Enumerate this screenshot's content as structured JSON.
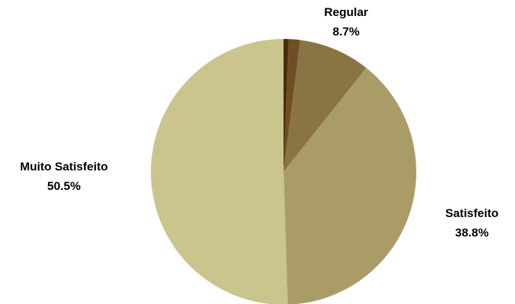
{
  "chart_data": {
    "type": "pie",
    "slices": [
      {
        "label": "",
        "value": 0.6,
        "display": "",
        "color": "#4a2a08"
      },
      {
        "label": "",
        "value": 1.4,
        "display": "",
        "color": "#6e4e22"
      },
      {
        "label": "Regular",
        "value": 8.7,
        "display": "8.7%",
        "color": "#8b7443"
      },
      {
        "label": "Satisfeito",
        "value": 38.8,
        "display": "38.8%",
        "color": "#aa9c66"
      },
      {
        "label": "Muito Satisfeito",
        "value": 50.5,
        "display": "50.5%",
        "color": "#c9c58c"
      }
    ],
    "start_angle": "12 o'clock",
    "direction": "clockwise",
    "legend": "none"
  }
}
